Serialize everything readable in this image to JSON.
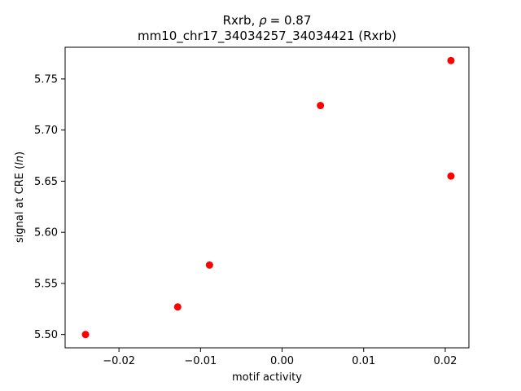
{
  "chart_data": {
    "type": "scatter",
    "title_gene": "Rxrb",
    "title_rho_symbol": "ρ",
    "title_rho_value": "= 0.87",
    "title_line2": "mm10_chr17_34034257_34034421 (Rxrb)",
    "xlabel": "motif activity",
    "ylabel_prefix": "signal at CRE (",
    "ylabel_italic": "ln",
    "ylabel_suffix": ")",
    "xlim": [
      -0.0266,
      0.0229
    ],
    "ylim": [
      5.487,
      5.781
    ],
    "x_ticks": [
      -0.02,
      -0.01,
      0.0,
      0.01,
      0.02
    ],
    "x_tick_labels": [
      "−0.02",
      "−0.01",
      "0.00",
      "0.01",
      "0.02"
    ],
    "y_ticks": [
      5.5,
      5.55,
      5.6,
      5.65,
      5.7,
      5.75
    ],
    "y_tick_labels": [
      "5.50",
      "5.55",
      "5.60",
      "5.65",
      "5.70",
      "5.75"
    ],
    "points": [
      {
        "x": -0.0241,
        "y": 5.5
      },
      {
        "x": -0.0128,
        "y": 5.527
      },
      {
        "x": -0.0089,
        "y": 5.568
      },
      {
        "x": 0.0047,
        "y": 5.724
      },
      {
        "x": 0.0207,
        "y": 5.655
      },
      {
        "x": 0.0207,
        "y": 5.768
      }
    ],
    "marker_color": "#ff0000",
    "grid": false
  }
}
